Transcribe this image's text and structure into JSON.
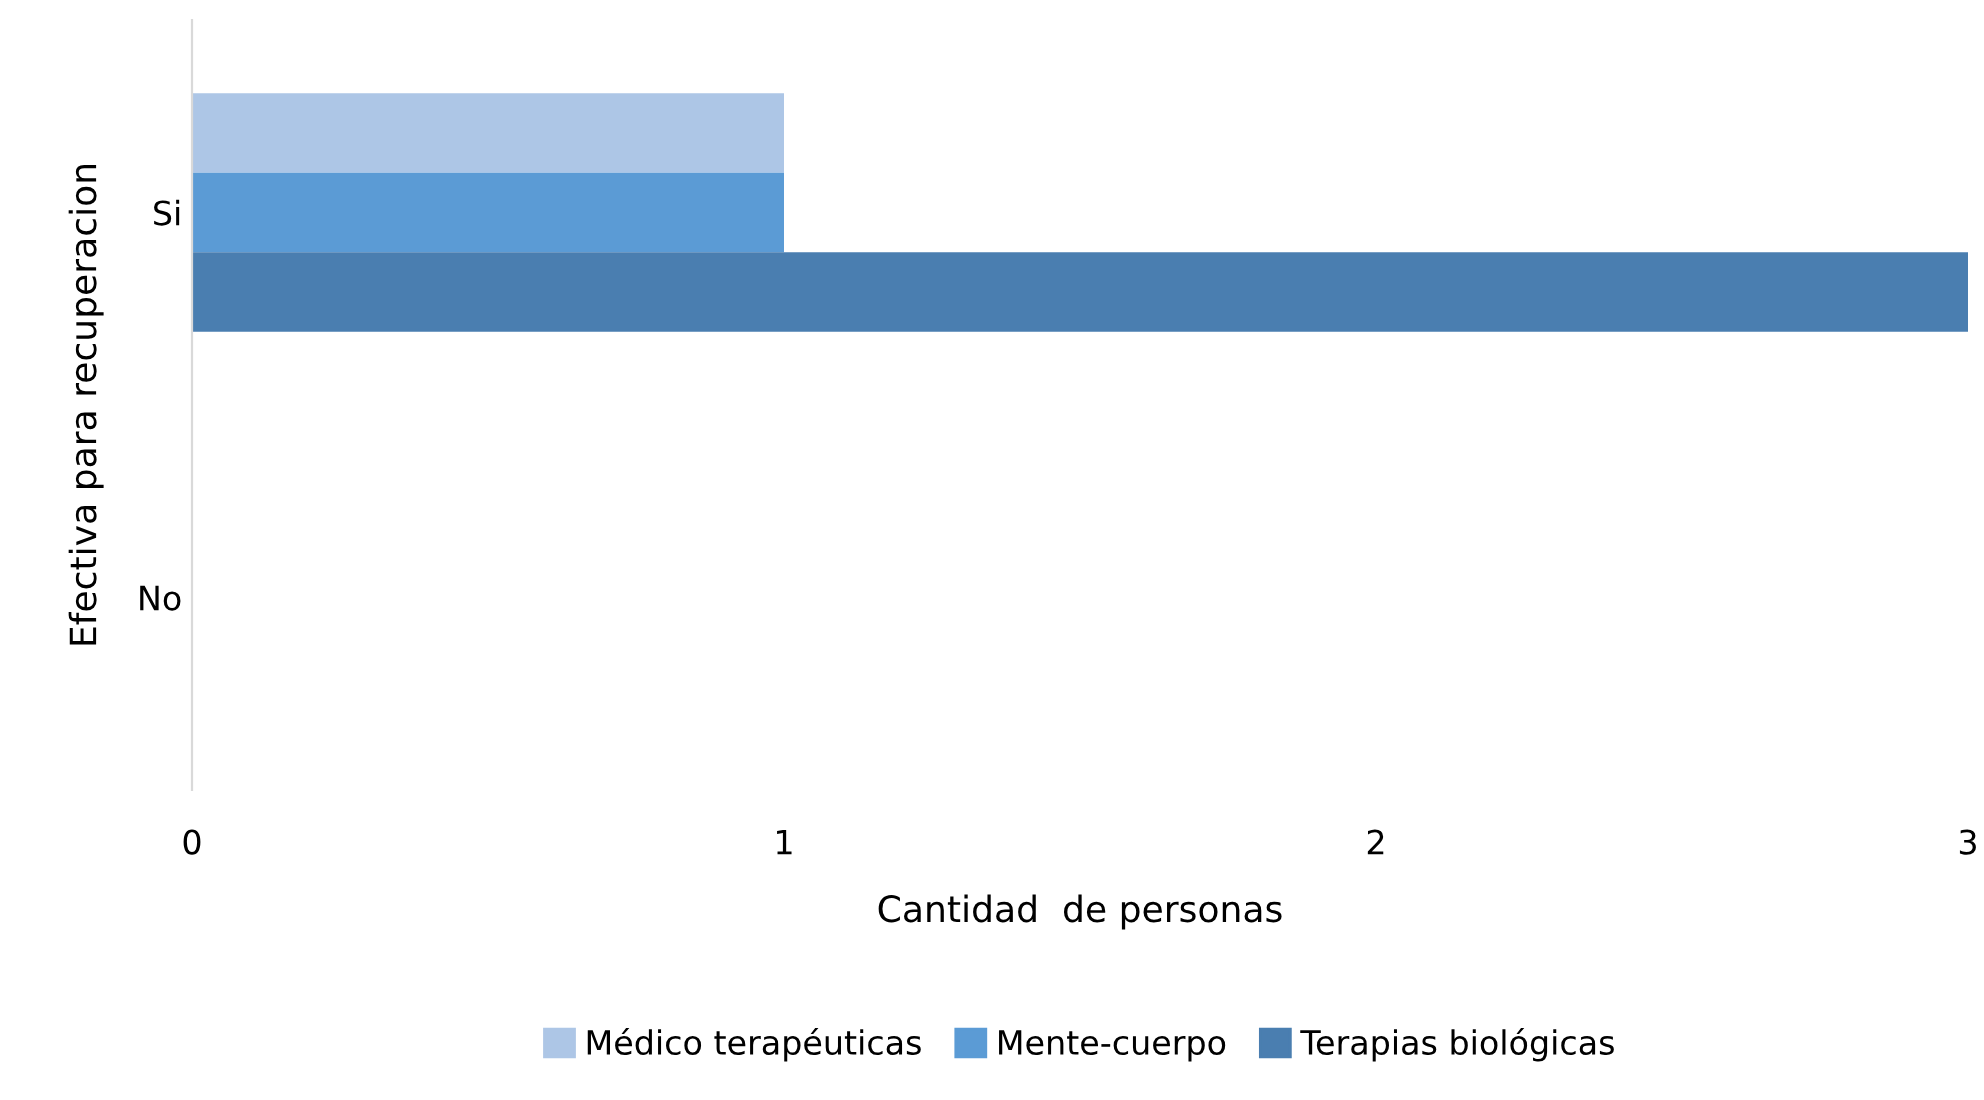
{
  "chart_data": {
    "type": "bar",
    "orientation": "horizontal",
    "xlabel": "Cantidad  de personas",
    "ylabel": "Efectiva para recuperacion",
    "categories": [
      "Si",
      "No"
    ],
    "series": [
      {
        "name": "Médico terapéuticas",
        "color": "#adc6e6",
        "values": [
          1,
          0
        ]
      },
      {
        "name": "Mente-cuerpo",
        "color": "#5b9bd5",
        "values": [
          1,
          0
        ]
      },
      {
        "name": "Terapias biológicas",
        "color": "#4a7eb0",
        "values": [
          3,
          0
        ]
      }
    ],
    "xlim": [
      0,
      3
    ],
    "xticks": [
      0,
      1,
      2,
      3
    ],
    "grid": false,
    "legend": "bottom"
  }
}
